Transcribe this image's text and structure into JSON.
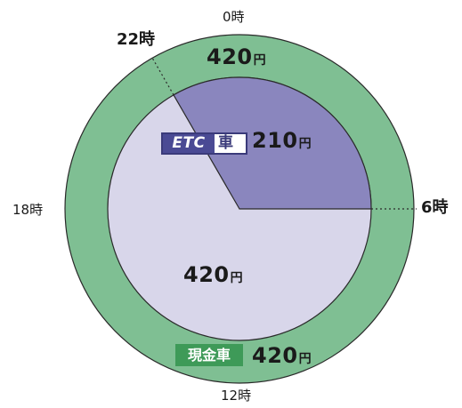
{
  "hours": {
    "h0": "0時",
    "h22": "22時",
    "h6": "6時",
    "h18": "18時",
    "h12": "12時"
  },
  "outer_ring": {
    "price_top": "420",
    "unit_top": "円",
    "price_bottom": "420",
    "unit_bottom": "円",
    "cash_label": "現金車"
  },
  "inner_circle": {
    "etc_logo": "ETC",
    "etc_kanji": "車",
    "etc_price": "210",
    "etc_unit": "円",
    "normal_price": "420",
    "normal_unit": "円"
  },
  "colors": {
    "outer_ring": "#7fbf93",
    "inner_light": "#d8d6ea",
    "etc_sector": "#8a86be",
    "etc_badge": "#4a4a94",
    "cash_badge": "#3e9a58"
  }
}
